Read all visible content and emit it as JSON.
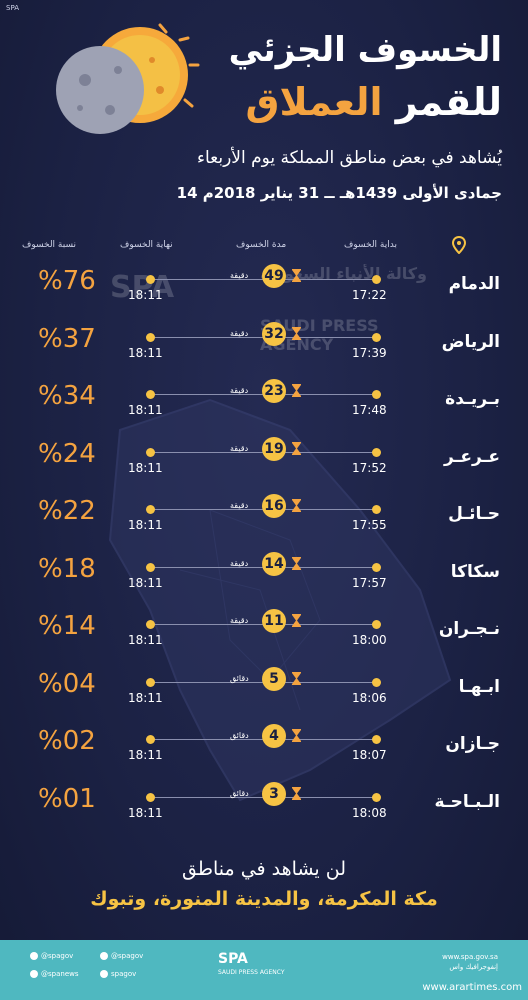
{
  "logo_tl": "SPA",
  "title": {
    "line1": "الخسوف الجزئي",
    "line2_white": "للقمر ",
    "line2_orange": "العملاق"
  },
  "subtitle": "يُشاهد في بعض مناطق المملكة يوم الأربعاء",
  "date": "14 جمادى الأولى 1439هـ ــ 31 يناير 2018م",
  "headers": {
    "start": "بداية الخسوف",
    "duration": "مدة الخسوف",
    "end": "نهاية الخسوف",
    "ratio": "نسبة الخسوف"
  },
  "watermark": {
    "line1": "وكالة الأنباء السعودية",
    "line2": "SAUDI PRESS AGENCY",
    "logo": "SPA"
  },
  "rows": [
    {
      "city": "الدمام",
      "start": "17:22",
      "duration": "49",
      "unit": "دقيقة",
      "end": "18:11",
      "ratio": "%76"
    },
    {
      "city": "الرياض",
      "start": "17:39",
      "duration": "32",
      "unit": "دقيقة",
      "end": "18:11",
      "ratio": "%37"
    },
    {
      "city": "بـريـدة",
      "start": "17:48",
      "duration": "23",
      "unit": "دقيقة",
      "end": "18:11",
      "ratio": "%34"
    },
    {
      "city": "عـرعـر",
      "start": "17:52",
      "duration": "19",
      "unit": "دقيقة",
      "end": "18:11",
      "ratio": "%24"
    },
    {
      "city": "حـائـل",
      "start": "17:55",
      "duration": "16",
      "unit": "دقيقة",
      "end": "18:11",
      "ratio": "%22"
    },
    {
      "city": "سكاكا",
      "start": "17:57",
      "duration": "14",
      "unit": "دقيقة",
      "end": "18:11",
      "ratio": "%18"
    },
    {
      "city": "نـجـران",
      "start": "18:00",
      "duration": "11",
      "unit": "دقيقة",
      "end": "18:11",
      "ratio": "%14"
    },
    {
      "city": "ابـهـا",
      "start": "18:06",
      "duration": "5",
      "unit": "دقائق",
      "end": "18:11",
      "ratio": "%04"
    },
    {
      "city": "جـازان",
      "start": "18:07",
      "duration": "4",
      "unit": "دقائق",
      "end": "18:11",
      "ratio": "%02"
    },
    {
      "city": "الـبـاحـة",
      "start": "18:08",
      "duration": "3",
      "unit": "دقائق",
      "end": "18:11",
      "ratio": "%01"
    }
  ],
  "bottom": {
    "line1": "لن يشاهد في مناطق",
    "line2": "مكة المكرمة، والمدينة المنورة، وتبوك"
  },
  "footer": {
    "social": [
      "@spagov",
      "@spagov",
      "@spanews",
      "spagov"
    ],
    "logo": "SPA",
    "logo_caption": "SAUDI PRESS AGENCY",
    "url": "www.spa.gov.sa",
    "tagline": "إنفوجرافيك واس",
    "source": "www.arartimes.com"
  },
  "colors": {
    "background": "#1b2143",
    "accent_orange": "#f4a340",
    "accent_yellow": "#f6c344",
    "footer": "#4fb8c0"
  }
}
